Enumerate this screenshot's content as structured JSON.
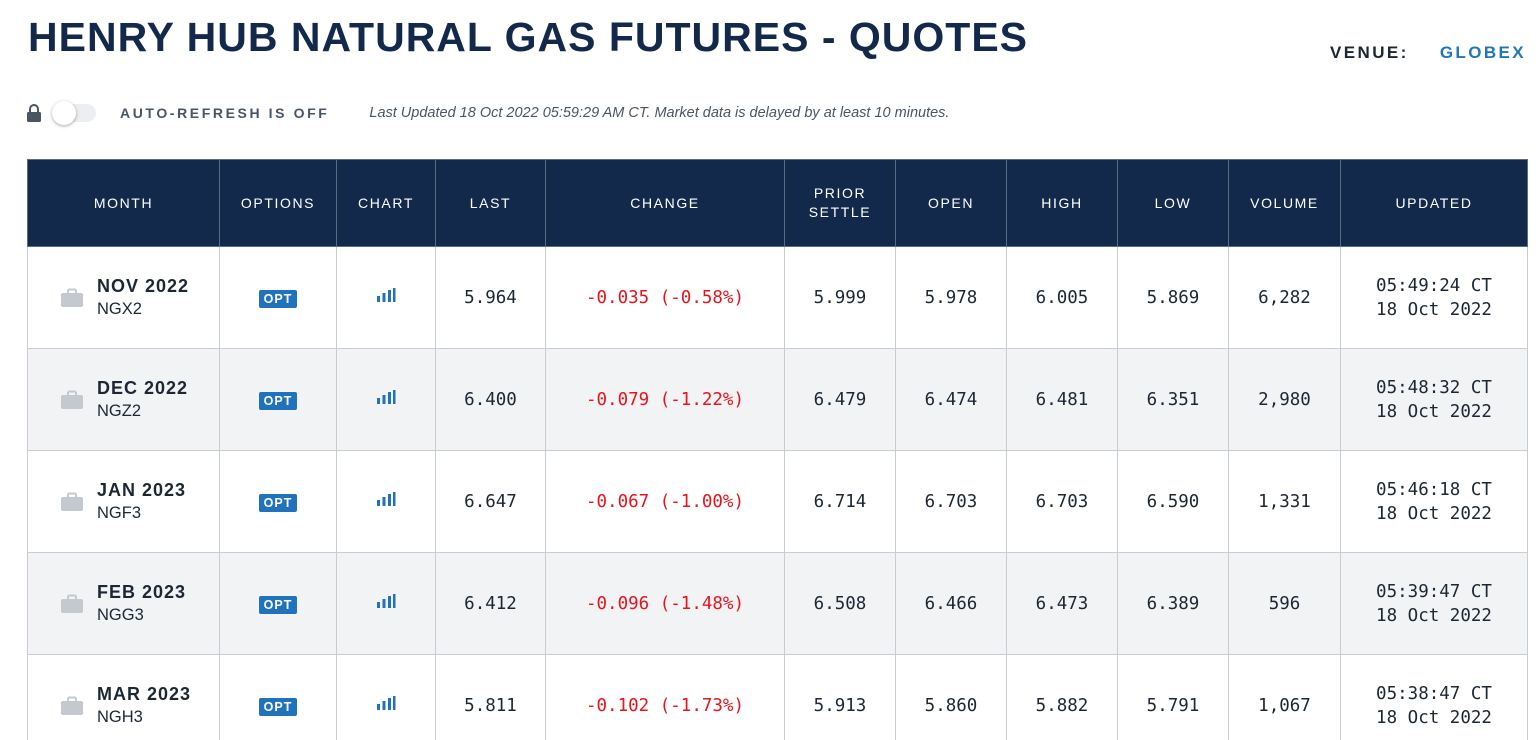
{
  "title": "HENRY HUB NATURAL GAS FUTURES - QUOTES",
  "venue": {
    "label": "VENUE:",
    "value": "GLOBEX"
  },
  "toolbar": {
    "lock_icon": "lock-icon",
    "auto_refresh_label": "AUTO-REFRESH IS OFF",
    "auto_refresh_on": false,
    "last_updated": "Last Updated 18 Oct 2022 05:59:29 AM CT.   Market data is delayed by at least 10 minutes."
  },
  "colors": {
    "header_bg": "#13294b",
    "change_negative": "#e8141c",
    "badge_bg": "#1f72bb",
    "chart_icon": "#1f72bb",
    "alt_row_bg": "#f1f3f5"
  },
  "table": {
    "headers": {
      "month": "MONTH",
      "options": "OPTIONS",
      "chart": "CHART",
      "last": "LAST",
      "change": "CHANGE",
      "prior_settle_1": "PRIOR",
      "prior_settle_2": "SETTLE",
      "open": "OPEN",
      "high": "HIGH",
      "low": "LOW",
      "volume": "VOLUME",
      "updated": "UPDATED"
    },
    "rows": [
      {
        "month": "NOV 2022",
        "code": "NGX2",
        "options": "OPT",
        "last": "5.964",
        "change": "-0.035 (-0.58%)",
        "prior_settle": "5.999",
        "open": "5.978",
        "high": "6.005",
        "low": "5.869",
        "volume": "6,282",
        "updated_time": "05:49:24 CT",
        "updated_date": "18 Oct 2022"
      },
      {
        "month": "DEC 2022",
        "code": "NGZ2",
        "options": "OPT",
        "last": "6.400",
        "change": "-0.079 (-1.22%)",
        "prior_settle": "6.479",
        "open": "6.474",
        "high": "6.481",
        "low": "6.351",
        "volume": "2,980",
        "updated_time": "05:48:32 CT",
        "updated_date": "18 Oct 2022"
      },
      {
        "month": "JAN 2023",
        "code": "NGF3",
        "options": "OPT",
        "last": "6.647",
        "change": "-0.067 (-1.00%)",
        "prior_settle": "6.714",
        "open": "6.703",
        "high": "6.703",
        "low": "6.590",
        "volume": "1,331",
        "updated_time": "05:46:18 CT",
        "updated_date": "18 Oct 2022"
      },
      {
        "month": "FEB 2023",
        "code": "NGG3",
        "options": "OPT",
        "last": "6.412",
        "change": "-0.096 (-1.48%)",
        "prior_settle": "6.508",
        "open": "6.466",
        "high": "6.473",
        "low": "6.389",
        "volume": "596",
        "updated_time": "05:39:47 CT",
        "updated_date": "18 Oct 2022"
      },
      {
        "month": "MAR 2023",
        "code": "NGH3",
        "options": "OPT",
        "last": "5.811",
        "change": "-0.102 (-1.73%)",
        "prior_settle": "5.913",
        "open": "5.860",
        "high": "5.882",
        "low": "5.791",
        "volume": "1,067",
        "updated_time": "05:38:47 CT",
        "updated_date": "18 Oct 2022"
      }
    ]
  }
}
